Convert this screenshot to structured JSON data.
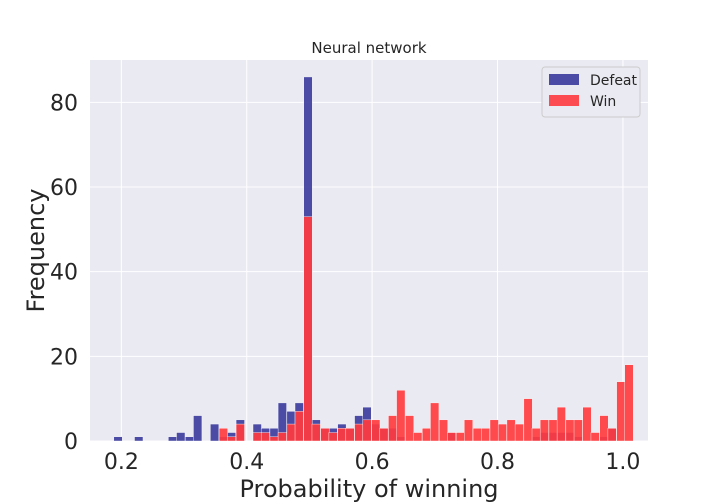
{
  "chart_data": {
    "type": "bar",
    "title": "Neural network",
    "xlabel": "Probability of winning",
    "ylabel": "Frequency",
    "xlim": [
      0.15,
      1.04
    ],
    "ylim": [
      0,
      90
    ],
    "xticks": [
      0.2,
      0.4,
      0.6,
      0.8,
      1.0
    ],
    "xtick_labels": [
      "0.2",
      "0.4",
      "0.6",
      "0.8",
      "1.0"
    ],
    "yticks": [
      0,
      20,
      40,
      60,
      80
    ],
    "ytick_labels": [
      "0",
      "20",
      "40",
      "60",
      "80"
    ],
    "grid": true,
    "legend_position": "top-right",
    "bin_width": 0.0135,
    "series": [
      {
        "name": "Defeat",
        "color": "#3a3a9c",
        "bins": [
          [
            0.188,
            1
          ],
          [
            0.221,
            1
          ],
          [
            0.275,
            1
          ],
          [
            0.288,
            2
          ],
          [
            0.302,
            1
          ],
          [
            0.315,
            6
          ],
          [
            0.342,
            4
          ],
          [
            0.356,
            1
          ],
          [
            0.369,
            2
          ],
          [
            0.383,
            5
          ],
          [
            0.41,
            4
          ],
          [
            0.423,
            3
          ],
          [
            0.437,
            3
          ],
          [
            0.45,
            9
          ],
          [
            0.464,
            7
          ],
          [
            0.477,
            9
          ],
          [
            0.491,
            86
          ],
          [
            0.504,
            5
          ],
          [
            0.518,
            3
          ],
          [
            0.531,
            3
          ],
          [
            0.545,
            4
          ],
          [
            0.558,
            3
          ],
          [
            0.572,
            6
          ],
          [
            0.585,
            8
          ],
          [
            0.599,
            4
          ],
          [
            0.612,
            3
          ],
          [
            0.626,
            3
          ],
          [
            0.639,
            1
          ],
          [
            0.72,
            2
          ],
          [
            0.855,
            1
          ],
          [
            0.868,
            2
          ],
          [
            0.882,
            2
          ],
          [
            0.895,
            2
          ],
          [
            0.909,
            2
          ],
          [
            0.922,
            1
          ],
          [
            0.963,
            1
          ],
          [
            0.976,
            3
          ]
        ]
      },
      {
        "name": "Win",
        "color": "#ff3b3f",
        "bins": [
          [
            0.356,
            3
          ],
          [
            0.369,
            1
          ],
          [
            0.383,
            4
          ],
          [
            0.41,
            2
          ],
          [
            0.423,
            2
          ],
          [
            0.437,
            1
          ],
          [
            0.45,
            2
          ],
          [
            0.464,
            4
          ],
          [
            0.477,
            7
          ],
          [
            0.491,
            53
          ],
          [
            0.504,
            4
          ],
          [
            0.518,
            3
          ],
          [
            0.531,
            2
          ],
          [
            0.545,
            3
          ],
          [
            0.558,
            3
          ],
          [
            0.572,
            4
          ],
          [
            0.585,
            5
          ],
          [
            0.599,
            5
          ],
          [
            0.612,
            3
          ],
          [
            0.626,
            6
          ],
          [
            0.639,
            12
          ],
          [
            0.653,
            6
          ],
          [
            0.666,
            2
          ],
          [
            0.68,
            3
          ],
          [
            0.693,
            9
          ],
          [
            0.707,
            5
          ],
          [
            0.72,
            2
          ],
          [
            0.734,
            2
          ],
          [
            0.747,
            5
          ],
          [
            0.761,
            3
          ],
          [
            0.774,
            3
          ],
          [
            0.788,
            5
          ],
          [
            0.801,
            4
          ],
          [
            0.815,
            5
          ],
          [
            0.828,
            4
          ],
          [
            0.842,
            10
          ],
          [
            0.855,
            3
          ],
          [
            0.868,
            5
          ],
          [
            0.882,
            5
          ],
          [
            0.895,
            8
          ],
          [
            0.909,
            5
          ],
          [
            0.922,
            5
          ],
          [
            0.936,
            8
          ],
          [
            0.949,
            2
          ],
          [
            0.963,
            6
          ],
          [
            0.976,
            3
          ],
          [
            0.99,
            14
          ],
          [
            1.003,
            18
          ]
        ]
      }
    ]
  }
}
